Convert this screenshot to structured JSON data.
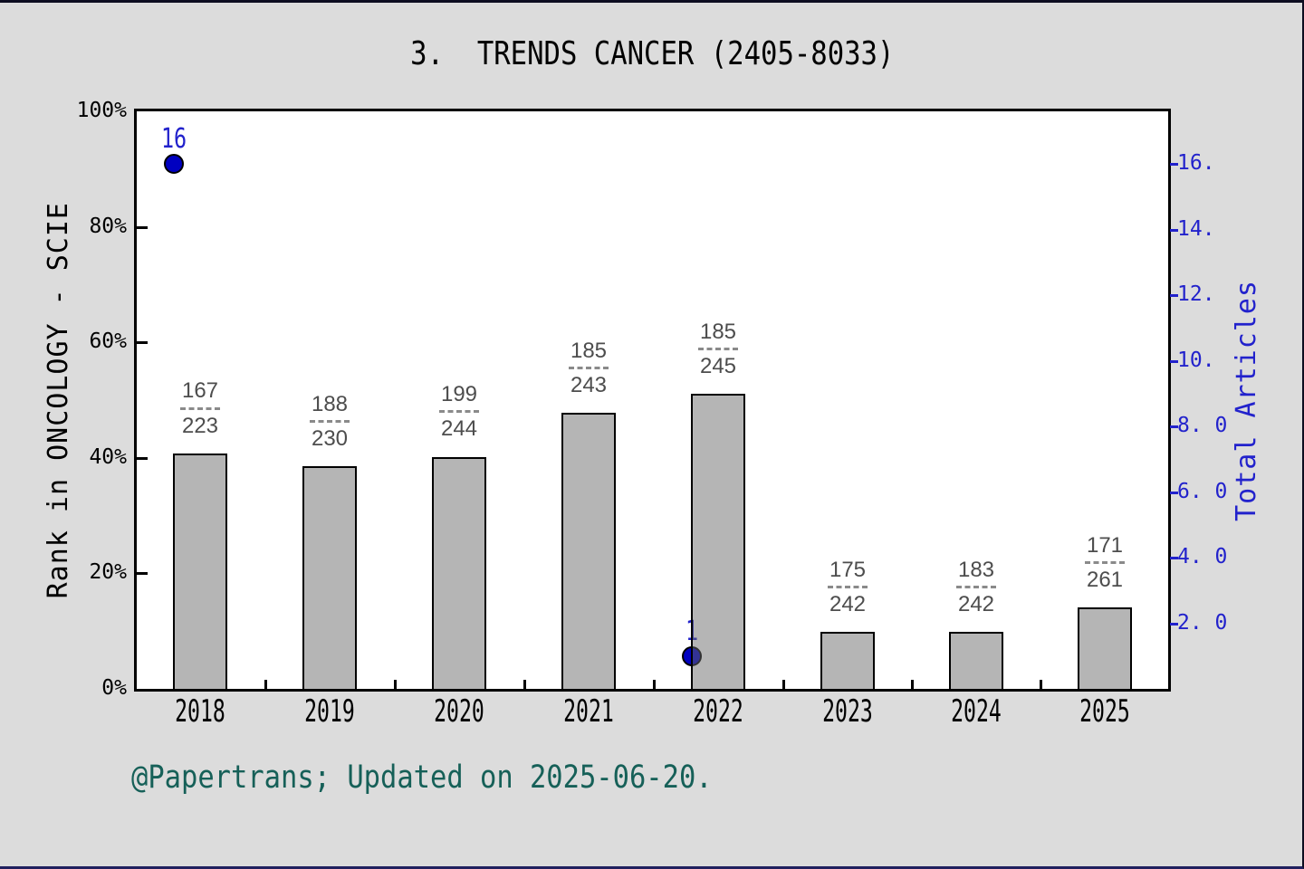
{
  "title": "3.  TRENDS CANCER (2405-8033)",
  "footer": "@Papertrans; Updated on 2025-06-20.",
  "colors": {
    "background": "#dcdcdc",
    "plot_background": "#ffffff",
    "frame": "#000000",
    "bar_fill": "#b5b5b5",
    "bar_border": "#000000",
    "blue": "#2222cc",
    "dot_fill": "#0000c0",
    "teal": "#166058",
    "fraction_text": "#4d4d4d",
    "fraction_dash": "#8a8a8a"
  },
  "left_axis": {
    "label": "Rank in ONCOLOGY - SCIE",
    "ticks": [
      {
        "value": 100,
        "label": "100%"
      },
      {
        "value": 80,
        "label": "80%"
      },
      {
        "value": 60,
        "label": "60%"
      },
      {
        "value": 40,
        "label": "40%"
      },
      {
        "value": 20,
        "label": "20%"
      },
      {
        "value": 0,
        "label": "0%"
      }
    ]
  },
  "right_axis": {
    "label": "Total Articles",
    "max": 17.6,
    "ticks": [
      {
        "value": 16,
        "label": "16."
      },
      {
        "value": 14,
        "label": "14."
      },
      {
        "value": 12,
        "label": "12."
      },
      {
        "value": 10,
        "label": "10."
      },
      {
        "value": 8,
        "label": "8. 0"
      },
      {
        "value": 6,
        "label": "6. 0"
      },
      {
        "value": 4,
        "label": "4. 0"
      },
      {
        "value": 2,
        "label": "2. 0"
      }
    ]
  },
  "chart_data": {
    "type": "bar",
    "title": "3. TRENDS CANCER (2405-8033)",
    "categories": [
      "2018",
      "2019",
      "2020",
      "2021",
      "2022",
      "2023",
      "2024",
      "2025"
    ],
    "left_ylabel": "Rank in ONCOLOGY - SCIE",
    "right_ylabel": "Total Articles",
    "left_ylim": [
      0,
      100
    ],
    "right_ylim": [
      0,
      17.6
    ],
    "grid": false,
    "legend": false,
    "series": [
      {
        "name": "Rank in ONCOLOGY - SCIE",
        "kind": "bar",
        "axis": "left",
        "unit": "% (bar height on left axis)",
        "values": [
          40.8,
          38.5,
          40.2,
          47.8,
          51.1,
          9.8,
          9.8,
          14.1
        ],
        "labels": [
          {
            "numerator": "167",
            "denominator": "223"
          },
          {
            "numerator": "188",
            "denominator": "230"
          },
          {
            "numerator": "199",
            "denominator": "244"
          },
          {
            "numerator": "185",
            "denominator": "243"
          },
          {
            "numerator": "185",
            "denominator": "245"
          },
          {
            "numerator": "175",
            "denominator": "242"
          },
          {
            "numerator": "183",
            "denominator": "242"
          },
          {
            "numerator": "171",
            "denominator": "261"
          }
        ]
      },
      {
        "name": "Total Articles",
        "kind": "scatter",
        "axis": "right",
        "points": [
          {
            "category": "2018",
            "value": 16,
            "label": "16"
          },
          {
            "category": "2022",
            "value": 1,
            "label": "1"
          }
        ]
      }
    ]
  }
}
